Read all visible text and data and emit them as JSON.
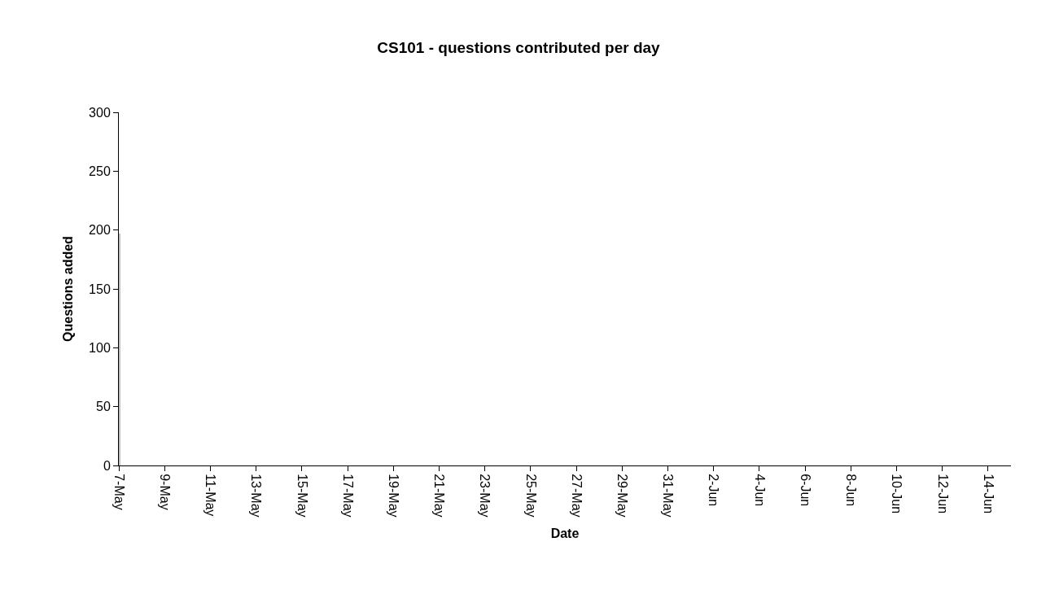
{
  "chart_data": {
    "type": "bar",
    "title": "CS101 - questions contributed per day",
    "xlabel": "Date",
    "ylabel": "Questions added",
    "x": [
      "--05-07"
    ],
    "values": [
      197
    ],
    "color": "#c0c0c0",
    "xlim": [
      "--05-07",
      "--06-15"
    ],
    "xticks": [
      {
        "value": "--05-07",
        "label": "7-May"
      },
      {
        "value": "--05-09",
        "label": "9-May"
      },
      {
        "value": "--05-11",
        "label": "11-May"
      },
      {
        "value": "--05-13",
        "label": "13-May"
      },
      {
        "value": "--05-15",
        "label": "15-May"
      },
      {
        "value": "--05-17",
        "label": "17-May"
      },
      {
        "value": "--05-19",
        "label": "19-May"
      },
      {
        "value": "--05-21",
        "label": "21-May"
      },
      {
        "value": "--05-23",
        "label": "23-May"
      },
      {
        "value": "--05-25",
        "label": "25-May"
      },
      {
        "value": "--05-27",
        "label": "27-May"
      },
      {
        "value": "--05-29",
        "label": "29-May"
      },
      {
        "value": "--05-31",
        "label": "31-May"
      },
      {
        "value": "--06-02",
        "label": "2-Jun"
      },
      {
        "value": "--06-04",
        "label": "4-Jun"
      },
      {
        "value": "--06-06",
        "label": "6-Jun"
      },
      {
        "value": "--06-08",
        "label": "8-Jun"
      },
      {
        "value": "--06-10",
        "label": "10-Jun"
      },
      {
        "value": "--06-12",
        "label": "12-Jun"
      },
      {
        "value": "--06-14",
        "label": "14-Jun"
      }
    ],
    "ylim": [
      0,
      300
    ],
    "yticks": [
      0,
      50,
      100,
      150,
      200,
      250,
      300
    ]
  }
}
